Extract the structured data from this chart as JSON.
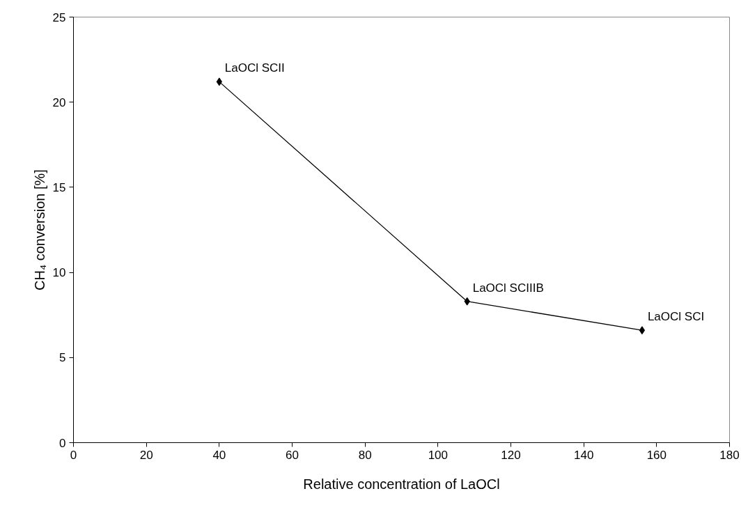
{
  "chart_data": {
    "type": "line",
    "xlabel": "Relative concentration of LaOCl",
    "ylabel": "CH₄ conversion [%]",
    "x": [
      40,
      108,
      156
    ],
    "series": [
      {
        "color": "#000000",
        "values": [
          21.2,
          8.3,
          6.6
        ]
      }
    ],
    "xlim": [
      0,
      180
    ],
    "xticks": [
      0,
      20,
      40,
      60,
      80,
      100,
      120,
      140,
      160,
      180
    ],
    "ylim": [
      0,
      25
    ],
    "yticks": [
      0,
      5,
      10,
      15,
      20,
      25
    ],
    "grid": false,
    "marker": "diamond",
    "line_style": "solid",
    "annotations": [
      {
        "text": "LaOCl SCII",
        "x": 40,
        "y": 21.2
      },
      {
        "text": "LaOCl SCIIIB",
        "x": 108,
        "y": 8.3
      },
      {
        "text": "LaOCl SCI",
        "x": 156,
        "y": 6.6
      }
    ]
  }
}
